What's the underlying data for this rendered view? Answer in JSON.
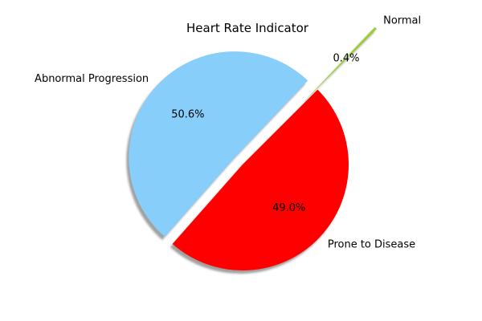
{
  "chart_data": {
    "type": "pie",
    "title": "Heart Rate Indicator",
    "slices": [
      {
        "label": "Normal",
        "value": 0.4,
        "pct_label": "0.4%",
        "color": "#9acd32",
        "explode": 0.8
      },
      {
        "label": "Abnormal Progression",
        "value": 50.6,
        "pct_label": "50.6%",
        "color": "#87cefa",
        "explode": 0.1
      },
      {
        "label": "Prone to Disease",
        "value": 49.0,
        "pct_label": "49.0%",
        "color": "#ff0000",
        "explode": 0.0
      }
    ],
    "start_angle": 45,
    "shadow": true,
    "legend": false
  }
}
